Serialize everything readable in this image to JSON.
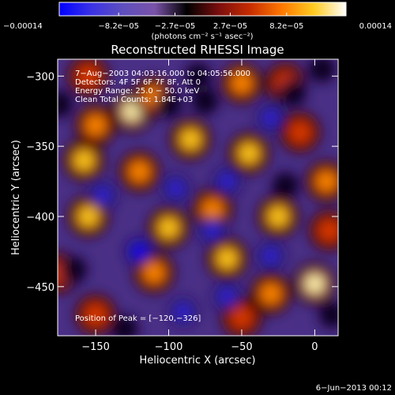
{
  "chart_data": {
    "type": "heatmap",
    "title": "Reconstructed RHESSI Image",
    "xlabel": "Heliocentric X (arcsec)",
    "ylabel": "Heliocentric Y (arcsec)",
    "x_range": [
      -176,
      16
    ],
    "y_range": [
      -485,
      -288
    ],
    "x_ticks": [
      -150,
      -100,
      -50,
      0
    ],
    "y_ticks": [
      -300,
      -350,
      -400,
      -450
    ],
    "x_tick_labels": [
      "−150",
      "−100",
      "−50",
      "0"
    ],
    "y_tick_labels": [
      "−300",
      "−350",
      "−400",
      "−450"
    ],
    "colorbar": {
      "range": [
        -0.00014,
        0.00014
      ],
      "ticks": [
        -0.00014,
        -8.2e-05,
        -2.7e-05,
        2.7e-05,
        8.2e-05,
        0.00014
      ],
      "tick_labels": [
        "−0.00014",
        "−8.2e−05",
        "−2.7e−05",
        "2.7e−05",
        "8.2e−05",
        "0.00014"
      ],
      "unit_label": "(photons cm⁻² s⁻¹ asec⁻²)",
      "stops": [
        "#0000ff",
        "#3a32e6",
        "#5e4fbe",
        "#7a52a8",
        "#000000",
        "#7a0e0e",
        "#c82d00",
        "#ff7a00",
        "#ffcc22",
        "#ffffff"
      ]
    },
    "annotations": [
      "7−Aug−2003 04:03:16.000 to 04:05:56.000",
      "Detectors: 4F 5F 6F 7F 8F, Att 0",
      "Energy Range: 25.0 − 50.0 keV",
      "Clean    Total Counts: 1.84E+03"
    ],
    "peak_label": "Position of Peak = [−120,−326]",
    "peak_position": [
      -120,
      -326
    ],
    "blobs": [
      {
        "x": -125,
        "y": -325,
        "value": 1.0
      },
      {
        "x": -150,
        "y": -335,
        "value": 0.7
      },
      {
        "x": -85,
        "y": -345,
        "value": 0.8
      },
      {
        "x": -110,
        "y": -315,
        "value": 0.6
      },
      {
        "x": -50,
        "y": -305,
        "value": 0.7
      },
      {
        "x": -20,
        "y": -305,
        "value": 0.5
      },
      {
        "x": -158,
        "y": -360,
        "value": 0.8
      },
      {
        "x": -120,
        "y": -368,
        "value": 0.7
      },
      {
        "x": -45,
        "y": -355,
        "value": 0.75
      },
      {
        "x": -10,
        "y": -340,
        "value": 0.55
      },
      {
        "x": 8,
        "y": -375,
        "value": 0.6
      },
      {
        "x": -155,
        "y": -400,
        "value": 0.85
      },
      {
        "x": -100,
        "y": -408,
        "value": 0.75
      },
      {
        "x": -70,
        "y": -395,
        "value": 0.6
      },
      {
        "x": -25,
        "y": -400,
        "value": 0.8
      },
      {
        "x": 10,
        "y": -410,
        "value": 0.5
      },
      {
        "x": -110,
        "y": -440,
        "value": 0.65
      },
      {
        "x": -60,
        "y": -430,
        "value": 0.85
      },
      {
        "x": -30,
        "y": -455,
        "value": 0.7
      },
      {
        "x": 0,
        "y": -448,
        "value": 0.9
      },
      {
        "x": -150,
        "y": -470,
        "value": 0.45
      },
      {
        "x": -50,
        "y": -472,
        "value": 0.55
      },
      {
        "x": -175,
        "y": -440,
        "value": 0.45
      },
      {
        "x": -155,
        "y": -300,
        "value": 0.5
      },
      {
        "x": -145,
        "y": -385,
        "value": -0.75
      },
      {
        "x": -120,
        "y": -425,
        "value": -0.9
      },
      {
        "x": -70,
        "y": -410,
        "value": -0.85
      },
      {
        "x": -95,
        "y": -380,
        "value": -0.8
      },
      {
        "x": -60,
        "y": -375,
        "value": -0.75
      },
      {
        "x": -90,
        "y": -468,
        "value": -0.75
      },
      {
        "x": -60,
        "y": -457,
        "value": -0.8
      },
      {
        "x": -30,
        "y": -428,
        "value": -0.8
      },
      {
        "x": -20,
        "y": -378,
        "value": -0.7
      },
      {
        "x": -100,
        "y": -320,
        "value": -0.7
      },
      {
        "x": -75,
        "y": -318,
        "value": -0.6
      },
      {
        "x": -80,
        "y": -300,
        "value": -0.55
      },
      {
        "x": -30,
        "y": -330,
        "value": -0.75
      },
      {
        "x": -15,
        "y": -312,
        "value": -0.6
      },
      {
        "x": 5,
        "y": -295,
        "value": -0.65
      },
      {
        "x": -165,
        "y": -438,
        "value": -0.65
      },
      {
        "x": -130,
        "y": -480,
        "value": -0.5
      },
      {
        "x": 12,
        "y": -470,
        "value": -0.5
      },
      {
        "x": -175,
        "y": -320,
        "value": -0.55
      }
    ]
  },
  "footer": {
    "timestamp": "6−Jun−2013 00:12"
  }
}
